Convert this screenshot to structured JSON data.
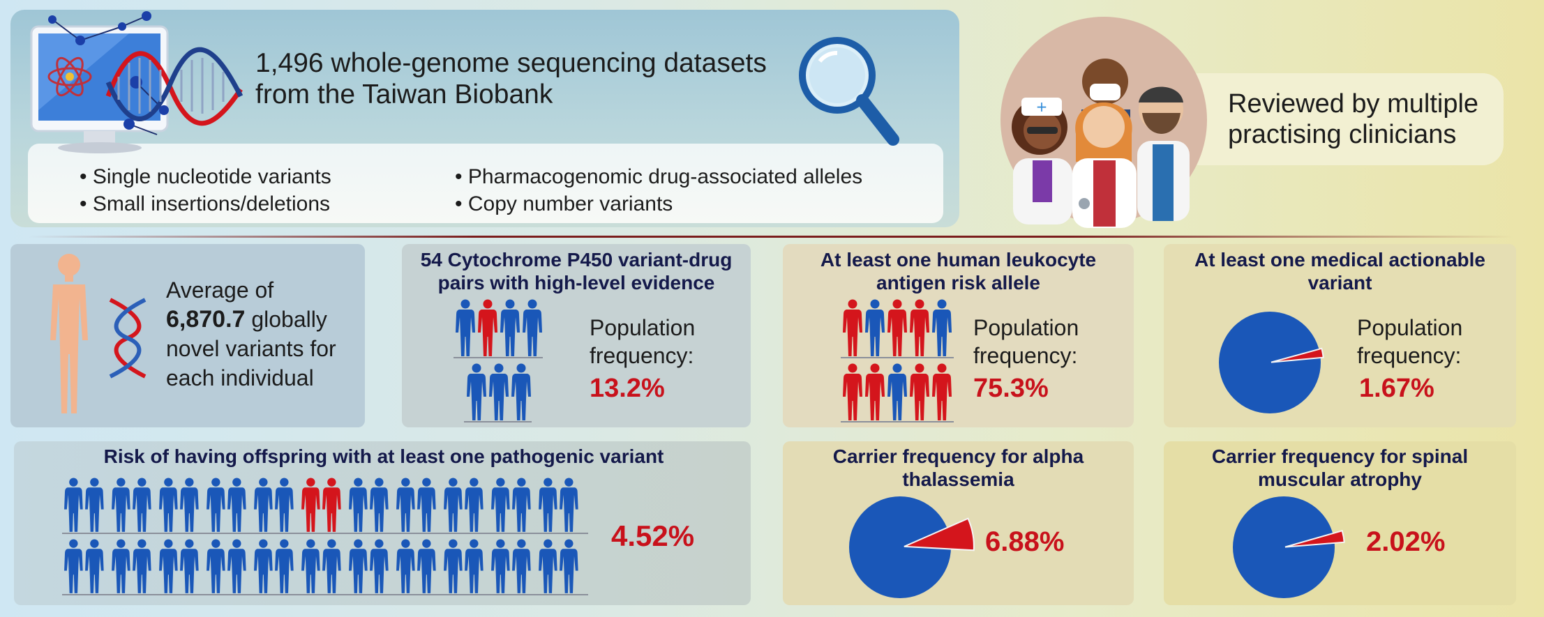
{
  "header": {
    "line1": "1,496 whole-genome sequencing datasets",
    "line2": "from the Taiwan Biobank",
    "bullets_left": [
      "• Single nucleotide variants",
      "• Small insertions/deletions"
    ],
    "bullets_right": [
      "• Pharmacogenomic drug-associated alleles",
      "• Copy number variants"
    ]
  },
  "clinicians": {
    "line1": "Reviewed by multiple",
    "line2": "practising clinicians"
  },
  "novel": {
    "line1": "Average of",
    "number": "6,870.7",
    "line2_rest": " globally",
    "line3": "novel variants for",
    "line4": "each individual"
  },
  "cyp": {
    "title1": "54 Cytochrome P450 variant-drug",
    "title2": "pairs with high-level evidence",
    "label1": "Population",
    "label2": "frequency:",
    "value": "13.2%",
    "fraction": 0.132
  },
  "hla": {
    "title1": "At least one human leukocyte",
    "title2": "antigen risk allele",
    "label1": "Population",
    "label2": "frequency:",
    "value": "75.3%",
    "fraction": 0.753
  },
  "actionable": {
    "title1": "At least one medical actionable",
    "title2": "variant",
    "label1": "Population",
    "label2": "frequency:",
    "value": "1.67%",
    "fraction": 0.0167
  },
  "offspring": {
    "title": "Risk of having offspring with at least one pathogenic variant",
    "value": "4.52%",
    "fraction": 0.0452
  },
  "thalassemia": {
    "title1": "Carrier frequency for alpha",
    "title2": "thalassemia",
    "value": "6.88%",
    "fraction": 0.0688
  },
  "sma": {
    "title1": "Carrier frequency for spinal",
    "title2": "muscular atrophy",
    "value": "2.02%",
    "fraction": 0.0202
  },
  "colors": {
    "blue": "#1a57b8",
    "red": "#d4151c",
    "title": "#14194a",
    "accent": "#c8111b"
  }
}
